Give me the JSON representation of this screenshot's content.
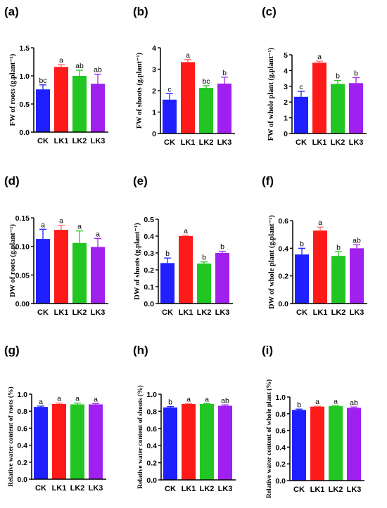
{
  "figure": {
    "categories": [
      "CK",
      "LK1",
      "LK2",
      "LK3"
    ],
    "colors": [
      "#1f1fff",
      "#ff1a1a",
      "#22c622",
      "#a020f0"
    ]
  },
  "chart_data": [
    {
      "type": "bar",
      "panel_label": "(a)",
      "ylabel": "FW of roots (g.plant⁻¹)",
      "ylim": [
        0,
        1.5
      ],
      "yticks": [
        "0.0",
        "0.5",
        "1.0",
        "1.5"
      ],
      "categories": [
        "CK",
        "LK1",
        "LK2",
        "LK3"
      ],
      "values": [
        0.76,
        1.16,
        1.0,
        0.86
      ],
      "errors": [
        0.08,
        0.04,
        0.1,
        0.17
      ],
      "letters": [
        "bc",
        "a",
        "ab",
        "ab"
      ]
    },
    {
      "type": "bar",
      "panel_label": "(b)",
      "ylabel": "FW of shoots (g.plant⁻¹)",
      "ylim": [
        0,
        4
      ],
      "yticks": [
        "0",
        "1",
        "2",
        "3",
        "4"
      ],
      "categories": [
        "CK",
        "LK1",
        "LK2",
        "LK3"
      ],
      "values": [
        1.58,
        3.33,
        2.13,
        2.33
      ],
      "errors": [
        0.28,
        0.12,
        0.1,
        0.3
      ],
      "letters": [
        "c",
        "a",
        "bc",
        "b"
      ]
    },
    {
      "type": "bar",
      "panel_label": "(c)",
      "ylabel": "FW of whole plant (g.plant⁻¹)",
      "ylim": [
        0,
        5
      ],
      "yticks": [
        "0",
        "1",
        "2",
        "3",
        "4",
        "5"
      ],
      "categories": [
        "CK",
        "LK1",
        "LK2",
        "LK3"
      ],
      "values": [
        2.33,
        4.5,
        3.15,
        3.2
      ],
      "errors": [
        0.35,
        0.1,
        0.22,
        0.35
      ],
      "letters": [
        "c",
        "a",
        "b",
        "b"
      ]
    },
    {
      "type": "bar",
      "panel_label": "(d)",
      "ylabel": "DW of roots (g.plant⁻¹)",
      "ylim": [
        0,
        0.15
      ],
      "yticks": [
        "0.00",
        "0.05",
        "0.10",
        "0.15"
      ],
      "categories": [
        "CK",
        "LK1",
        "LK2",
        "LK3"
      ],
      "values": [
        0.113,
        0.129,
        0.106,
        0.099
      ],
      "errors": [
        0.017,
        0.008,
        0.021,
        0.015
      ],
      "letters": [
        "a",
        "a",
        "a",
        "a"
      ]
    },
    {
      "type": "bar",
      "panel_label": "(e)",
      "ylabel": "DW of  shoots (g.plant⁻¹)",
      "ylim": [
        0,
        0.5
      ],
      "yticks": [
        "0.0",
        "0.1",
        "0.2",
        "0.3",
        "0.4",
        "0.5"
      ],
      "categories": [
        "CK",
        "LK1",
        "LK2",
        "LK3"
      ],
      "values": [
        0.24,
        0.4,
        0.237,
        0.3
      ],
      "errors": [
        0.03,
        0.005,
        0.01,
        0.01
      ],
      "letters": [
        "b",
        "a",
        "b",
        "b"
      ]
    },
    {
      "type": "bar",
      "panel_label": "(f)",
      "ylabel": "DW of whole plant (g.plant⁻¹)",
      "ylim": [
        0,
        0.6
      ],
      "yticks": [
        "0.0",
        "0.2",
        "0.4",
        "0.6"
      ],
      "categories": [
        "CK",
        "LK1",
        "LK2",
        "LK3"
      ],
      "values": [
        0.355,
        0.528,
        0.345,
        0.4
      ],
      "errors": [
        0.045,
        0.025,
        0.03,
        0.025
      ],
      "letters": [
        "b",
        "a",
        "b",
        "ab"
      ]
    },
    {
      "type": "bar",
      "panel_label": "(g)",
      "ylabel": "Relative water content of roots (%)",
      "ylim": [
        0,
        1.0
      ],
      "yticks": [
        "0.0",
        "0.2",
        "0.4",
        "0.6",
        "0.8",
        "1.0"
      ],
      "categories": [
        "CK",
        "LK1",
        "LK2",
        "LK3"
      ],
      "values": [
        0.85,
        0.885,
        0.88,
        0.88
      ],
      "errors": [
        0.01,
        0.01,
        0.015,
        0.01
      ],
      "letters": [
        "a",
        "a",
        "a",
        "a"
      ]
    },
    {
      "type": "bar",
      "panel_label": "(h)",
      "ylabel": "Relative water content of shoots (%)",
      "ylim": [
        0,
        1.0
      ],
      "yticks": [
        "0.0",
        "0.2",
        "0.4",
        "0.6",
        "0.8",
        "1.0"
      ],
      "categories": [
        "CK",
        "LK1",
        "LK2",
        "LK3"
      ],
      "values": [
        0.845,
        0.885,
        0.885,
        0.865
      ],
      "errors": [
        0.01,
        0.005,
        0.005,
        0.01
      ],
      "letters": [
        "b",
        "a",
        "a",
        "ab"
      ]
    },
    {
      "type": "bar",
      "panel_label": "(i)",
      "ylabel": "Relative water content of whole plant (%)",
      "ylim": [
        0,
        1.0
      ],
      "yticks": [
        "0.0",
        "0.2",
        "0.4",
        "0.6",
        "0.8",
        "1.0"
      ],
      "categories": [
        "CK",
        "LK1",
        "LK2",
        "LK3"
      ],
      "values": [
        0.845,
        0.885,
        0.89,
        0.87
      ],
      "errors": [
        0.01,
        0.005,
        0.005,
        0.01
      ],
      "letters": [
        "b",
        "a",
        "a",
        "ab"
      ]
    }
  ]
}
